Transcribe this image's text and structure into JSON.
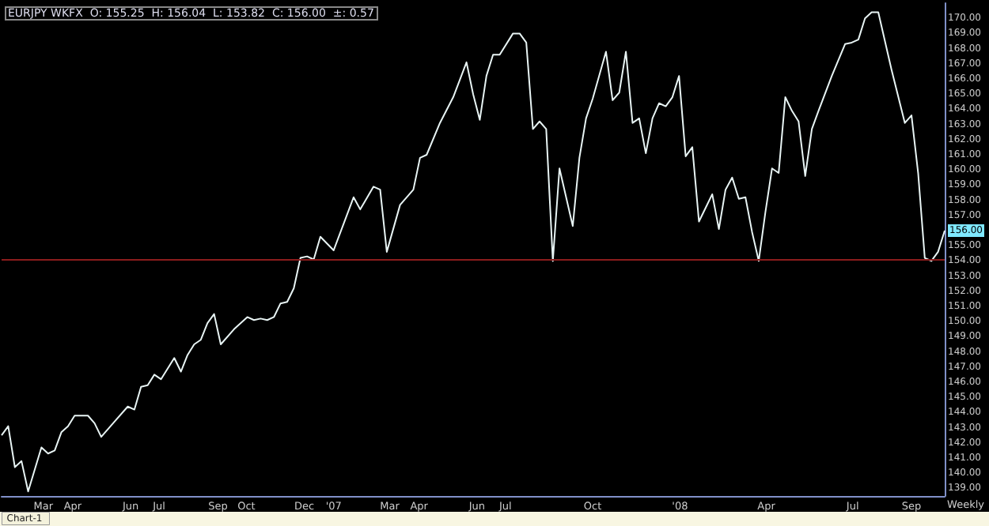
{
  "chart_data": {
    "type": "line",
    "title": "EURJPY WKFX  O: 155.25  H: 156.04  L: 153.82  C: 156.00  ±: 0.57",
    "x": [
      "2006-01-16",
      "2006-01-23",
      "2006-01-30",
      "2006-02-06",
      "2006-02-13",
      "2006-02-27",
      "2006-03-06",
      "2006-03-13",
      "2006-03-20",
      "2006-03-27",
      "2006-04-03",
      "2006-04-17",
      "2006-04-24",
      "2006-05-01",
      "2006-05-15",
      "2006-05-29",
      "2006-06-05",
      "2006-06-12",
      "2006-06-19",
      "2006-06-26",
      "2006-07-03",
      "2006-07-17",
      "2006-07-24",
      "2006-07-31",
      "2006-08-07",
      "2006-08-14",
      "2006-08-21",
      "2006-08-28",
      "2006-09-04",
      "2006-09-18",
      "2006-10-02",
      "2006-10-09",
      "2006-10-16",
      "2006-10-23",
      "2006-10-30",
      "2006-11-06",
      "2006-11-13",
      "2006-11-20",
      "2006-11-27",
      "2006-12-04",
      "2006-12-11",
      "2006-12-18",
      "2007-01-01",
      "2007-01-22",
      "2007-01-29",
      "2007-02-12",
      "2007-02-19",
      "2007-02-26",
      "2007-03-12",
      "2007-03-26",
      "2007-04-02",
      "2007-04-09",
      "2007-04-23",
      "2007-05-07",
      "2007-05-21",
      "2007-05-28",
      "2007-06-04",
      "2007-06-11",
      "2007-06-18",
      "2007-06-25",
      "2007-07-09",
      "2007-07-16",
      "2007-07-23",
      "2007-07-30",
      "2007-08-06",
      "2007-08-13",
      "2007-08-20",
      "2007-08-27",
      "2007-09-03",
      "2007-09-10",
      "2007-09-17",
      "2007-09-24",
      "2007-10-01",
      "2007-10-15",
      "2007-10-22",
      "2007-10-29",
      "2007-11-05",
      "2007-11-12",
      "2007-11-19",
      "2007-11-26",
      "2007-12-03",
      "2007-12-10",
      "2007-12-17",
      "2007-12-24",
      "2007-12-31",
      "2008-01-07",
      "2008-01-14",
      "2008-01-21",
      "2008-01-28",
      "2008-02-04",
      "2008-02-11",
      "2008-02-18",
      "2008-02-25",
      "2008-03-03",
      "2008-03-10",
      "2008-03-17",
      "2008-03-24",
      "2008-03-31",
      "2008-04-07",
      "2008-04-14",
      "2008-04-21",
      "2008-04-28",
      "2008-05-05",
      "2008-05-12",
      "2008-05-19",
      "2008-05-26",
      "2008-06-09",
      "2008-06-23",
      "2008-06-30",
      "2008-07-07",
      "2008-07-14",
      "2008-07-21",
      "2008-07-28",
      "2008-08-11",
      "2008-08-25",
      "2008-09-01",
      "2008-09-08",
      "2008-09-15",
      "2008-09-22",
      "2008-09-29",
      "2008-10-06"
    ],
    "series": [
      {
        "color": "#e8f4f4",
        "values": [
          142.5,
          143.1,
          140.4,
          140.8,
          138.8,
          141.7,
          141.3,
          141.5,
          142.7,
          143.1,
          143.8,
          143.8,
          143.3,
          142.4,
          143.4,
          144.4,
          144.2,
          145.7,
          145.8,
          146.5,
          146.2,
          147.6,
          146.7,
          147.8,
          148.5,
          148.8,
          149.9,
          150.5,
          148.5,
          149.5,
          150.3,
          150.1,
          150.2,
          150.1,
          150.3,
          151.2,
          151.3,
          152.2,
          154.2,
          154.3,
          154.1,
          155.6,
          154.7,
          158.2,
          157.4,
          158.9,
          158.7,
          154.6,
          157.7,
          158.7,
          160.8,
          161.0,
          163.1,
          164.8,
          167.1,
          165.0,
          163.3,
          166.2,
          167.6,
          167.6,
          169.0,
          169.0,
          168.4,
          162.7,
          163.2,
          162.7,
          154.0,
          160.1,
          158.2,
          156.3,
          160.8,
          163.4,
          164.7,
          167.8,
          164.6,
          165.1,
          167.8,
          163.1,
          163.4,
          161.1,
          163.4,
          164.4,
          164.2,
          164.8,
          166.2,
          160.9,
          161.5,
          156.6,
          157.5,
          158.4,
          156.1,
          158.7,
          159.5,
          158.1,
          158.2,
          155.9,
          154.0,
          157.2,
          160.1,
          159.8,
          164.8,
          163.9,
          163.2,
          159.6,
          162.7,
          163.9,
          166.2,
          168.3,
          168.4,
          168.6,
          170.0,
          170.4,
          170.4,
          166.6,
          163.1,
          163.6,
          159.8,
          154.2,
          154.0,
          154.6,
          156.0
        ]
      }
    ],
    "xlim": [
      "2006-01-16",
      "2008-10-06"
    ],
    "xticks": [
      {
        "value": "2006-03-01",
        "label": "Mar"
      },
      {
        "value": "2006-04-01",
        "label": "Apr"
      },
      {
        "value": "2006-06-01",
        "label": "Jun"
      },
      {
        "value": "2006-07-01",
        "label": "Jul"
      },
      {
        "value": "2006-09-01",
        "label": "Sep"
      },
      {
        "value": "2006-10-01",
        "label": "Oct"
      },
      {
        "value": "2006-12-01",
        "label": "Dec"
      },
      {
        "value": "2007-01-01",
        "label": "'07"
      },
      {
        "value": "2007-03-01",
        "label": "Mar"
      },
      {
        "value": "2007-04-01",
        "label": "Apr"
      },
      {
        "value": "2007-06-01",
        "label": "Jun"
      },
      {
        "value": "2007-07-01",
        "label": "Jul"
      },
      {
        "value": "2007-10-01",
        "label": "Oct"
      },
      {
        "value": "2008-01-01",
        "label": "'08"
      },
      {
        "value": "2008-04-01",
        "label": "Apr"
      },
      {
        "value": "2008-07-01",
        "label": "Jul"
      },
      {
        "value": "2008-09-01",
        "label": "Sep"
      }
    ],
    "ylim": [
      138.5,
      171
    ],
    "yticks": [
      {
        "value": 139,
        "label": "139.00"
      },
      {
        "value": 140,
        "label": "140.00"
      },
      {
        "value": 141,
        "label": "141.00"
      },
      {
        "value": 142,
        "label": "142.00"
      },
      {
        "value": 143,
        "label": "143.00"
      },
      {
        "value": 144,
        "label": "144.00"
      },
      {
        "value": 145,
        "label": "145.00"
      },
      {
        "value": 146,
        "label": "146.00"
      },
      {
        "value": 147,
        "label": "147.00"
      },
      {
        "value": 148,
        "label": "148.00"
      },
      {
        "value": 149,
        "label": "149.00"
      },
      {
        "value": 150,
        "label": "150.00"
      },
      {
        "value": 151,
        "label": "151.00"
      },
      {
        "value": 152,
        "label": "152.00"
      },
      {
        "value": 153,
        "label": "153.00"
      },
      {
        "value": 154,
        "label": "154.00"
      },
      {
        "value": 155,
        "label": "155.00"
      },
      {
        "value": 156,
        "label": "156.00"
      },
      {
        "value": 157,
        "label": "157.00"
      },
      {
        "value": 158,
        "label": "158.00"
      },
      {
        "value": 159,
        "label": "159.00"
      },
      {
        "value": 160,
        "label": "160.00"
      },
      {
        "value": 161,
        "label": "161.00"
      },
      {
        "value": 162,
        "label": "162.00"
      },
      {
        "value": 163,
        "label": "163.00"
      },
      {
        "value": 164,
        "label": "164.00"
      },
      {
        "value": 165,
        "label": "165.00"
      },
      {
        "value": 166,
        "label": "166.00"
      },
      {
        "value": 167,
        "label": "167.00"
      },
      {
        "value": 168,
        "label": "168.00"
      },
      {
        "value": 169,
        "label": "169.00"
      },
      {
        "value": 170,
        "label": "170.00"
      }
    ],
    "ref_lines": [
      {
        "axis": "y",
        "value": 154.1,
        "color": "#8b1c1c"
      }
    ],
    "annotations": [
      "Weekly",
      "Chart-1"
    ],
    "grid": false,
    "marker": "none",
    "line_style": "solid"
  }
}
